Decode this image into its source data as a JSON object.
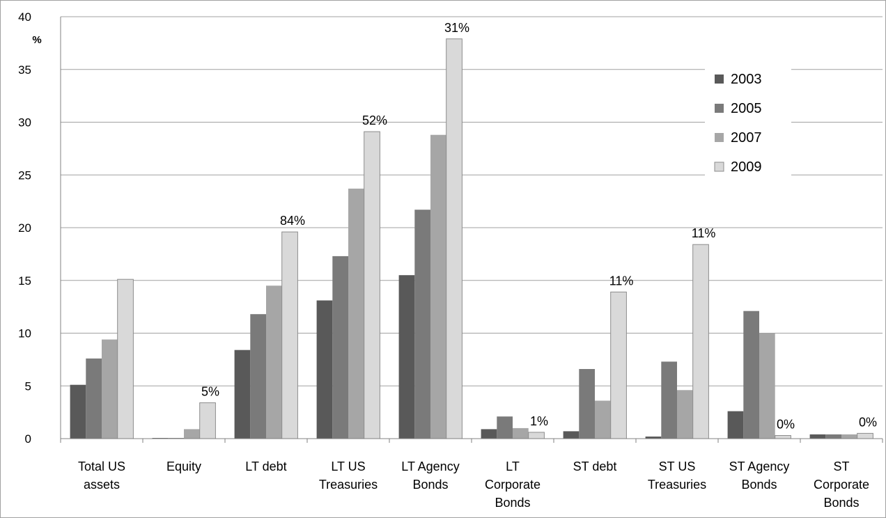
{
  "chart_data": {
    "type": "bar",
    "ylabel": "%",
    "ylim": [
      0,
      40
    ],
    "yticks": [
      0,
      5,
      10,
      15,
      20,
      25,
      30,
      35,
      40
    ],
    "grid": true,
    "legend_position": "top-right",
    "categories": [
      [
        "Total US",
        "assets"
      ],
      [
        "Equity"
      ],
      [
        "LT debt"
      ],
      [
        "LT US",
        "Treasuries"
      ],
      [
        "LT Agency",
        "Bonds"
      ],
      [
        "LT",
        "Corporate",
        "Bonds"
      ],
      [
        "ST debt"
      ],
      [
        "ST US",
        "Treasuries"
      ],
      [
        "ST Agency",
        "Bonds"
      ],
      [
        "ST",
        "Corporate",
        "Bonds"
      ]
    ],
    "series": [
      {
        "name": "2003",
        "color": "#595959",
        "values": [
          5.1,
          0.05,
          8.4,
          13.1,
          15.5,
          0.9,
          0.7,
          0.2,
          2.6,
          0.4
        ]
      },
      {
        "name": "2005",
        "color": "#7a7a7a",
        "values": [
          7.6,
          0.05,
          11.8,
          17.3,
          21.7,
          2.1,
          6.6,
          7.3,
          12.1,
          0.4
        ]
      },
      {
        "name": "2007",
        "color": "#a6a6a6",
        "values": [
          9.4,
          0.9,
          14.5,
          23.7,
          28.8,
          1.0,
          3.6,
          4.6,
          10.0,
          0.4
        ]
      },
      {
        "name": "2009",
        "color": "#d9d9d9",
        "values": [
          15.1,
          3.4,
          19.6,
          29.1,
          37.9,
          0.6,
          13.9,
          18.4,
          0.3,
          0.5
        ]
      }
    ],
    "annotations": [
      "",
      "5%",
      "84%",
      "52%",
      "31%",
      "1%",
      "11%",
      "11%",
      "0%",
      "0%"
    ]
  }
}
